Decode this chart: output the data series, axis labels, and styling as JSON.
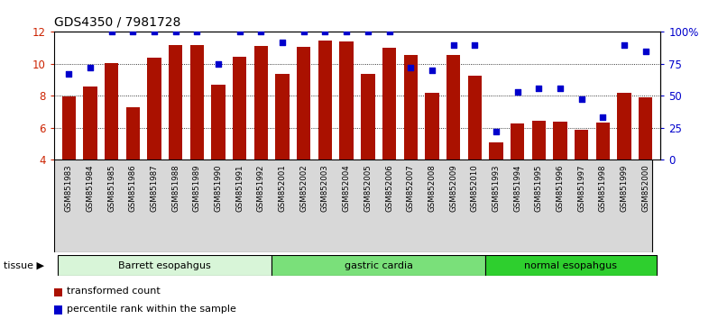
{
  "title": "GDS4350 / 7981728",
  "samples": [
    "GSM851983",
    "GSM851984",
    "GSM851985",
    "GSM851986",
    "GSM851987",
    "GSM851988",
    "GSM851989",
    "GSM851990",
    "GSM851991",
    "GSM851992",
    "GSM852001",
    "GSM852002",
    "GSM852003",
    "GSM852004",
    "GSM852005",
    "GSM852006",
    "GSM852007",
    "GSM852008",
    "GSM852009",
    "GSM852010",
    "GSM851993",
    "GSM851994",
    "GSM851995",
    "GSM851996",
    "GSM851997",
    "GSM851998",
    "GSM851999",
    "GSM852000"
  ],
  "bar_values": [
    7.95,
    8.55,
    10.02,
    7.25,
    10.38,
    11.15,
    11.18,
    8.68,
    10.42,
    11.12,
    9.35,
    11.08,
    11.45,
    11.42,
    9.38,
    11.02,
    10.58,
    8.18,
    10.58,
    9.28,
    5.05,
    6.28,
    6.45,
    6.38,
    5.85,
    6.32,
    8.18,
    7.92
  ],
  "pct_values": [
    67,
    72,
    100,
    100,
    100,
    100,
    100,
    75,
    100,
    100,
    92,
    100,
    100,
    100,
    100,
    100,
    72,
    70,
    90,
    90,
    22,
    53,
    56,
    56,
    47,
    33,
    90,
    85
  ],
  "tissue_groups": [
    {
      "label": "Barrett esopahgus",
      "start": 0,
      "end": 10,
      "color": "#d8f5d8"
    },
    {
      "label": "gastric cardia",
      "start": 10,
      "end": 20,
      "color": "#7ae07a"
    },
    {
      "label": "normal esopahgus",
      "start": 20,
      "end": 28,
      "color": "#2ecf2e"
    }
  ],
  "bar_color": "#aa1100",
  "dot_color": "#0000cc",
  "bar_bottom": 4.0,
  "ylim_left": [
    4,
    12
  ],
  "ylim_right": [
    0,
    100
  ],
  "yticks_left": [
    4,
    6,
    8,
    10,
    12
  ],
  "yticks_right": [
    0,
    25,
    50,
    75,
    100
  ],
  "yticklabels_right": [
    "0",
    "25",
    "50",
    "75",
    "100%"
  ],
  "grid_values": [
    6,
    8,
    10
  ],
  "background_color": "#ffffff",
  "legend_items": [
    {
      "label": "transformed count",
      "color": "#aa1100"
    },
    {
      "label": "percentile rank within the sample",
      "color": "#0000cc"
    }
  ]
}
